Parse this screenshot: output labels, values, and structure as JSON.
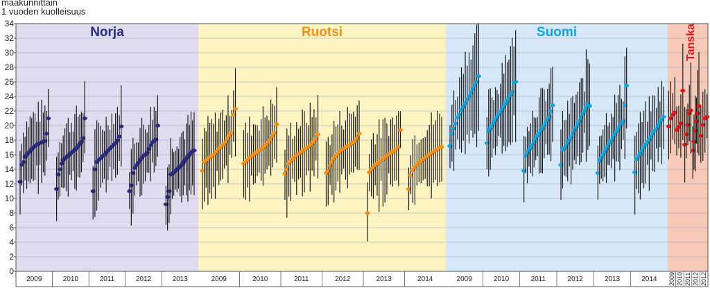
{
  "chart_data": {
    "type": "scatter",
    "title_lines": [
      "maakunnittain",
      "1 vuoden kuolleisuus"
    ],
    "ylim": [
      0,
      34
    ],
    "yticks": [
      0,
      2,
      4,
      6,
      8,
      10,
      12,
      14,
      16,
      18,
      20,
      22,
      24,
      26,
      28,
      30,
      32,
      34
    ],
    "grid": true,
    "panels": [
      {
        "name": "Norja",
        "background": "#e0dcf0",
        "color": "#2b2a7e",
        "label_color": "#2b2a7e",
        "years": [
          {
            "year": "2009",
            "values": [
              12.3,
              14.6,
              15.0,
              15.7,
              16.0,
              16.3,
              16.5,
              16.8,
              17.0,
              17.2,
              17.4,
              17.5,
              17.6,
              17.7,
              17.8,
              17.9,
              18.9,
              21.0
            ]
          },
          {
            "year": "2010",
            "values": [
              11.3,
              13.3,
              14.0,
              14.8,
              15.3,
              15.5,
              15.7,
              15.9,
              16.1,
              16.3,
              16.5,
              16.7,
              16.9,
              17.2,
              17.5,
              17.8,
              18.3,
              21.0
            ]
          },
          {
            "year": "2011",
            "values": [
              11.0,
              14.0,
              15.0,
              15.3,
              15.5,
              15.8,
              16.0,
              16.3,
              16.6,
              16.9,
              17.1,
              17.4,
              17.6,
              18.0,
              18.5,
              19.9
            ]
          },
          {
            "year": "2012",
            "values": [
              11.0,
              11.8,
              13.5,
              14.2,
              14.6,
              14.9,
              15.3,
              15.6,
              15.9,
              16.0,
              16.3,
              16.8,
              17.3,
              17.7,
              17.9,
              18.1,
              20.0
            ]
          },
          {
            "year": "2013",
            "values": [
              9.2,
              10.2,
              11.0,
              13.3,
              13.4,
              13.6,
              13.8,
              14.0,
              14.2,
              14.4,
              14.6,
              14.9,
              15.2,
              15.5,
              15.8,
              16.0,
              16.3,
              16.5,
              16.6
            ]
          }
        ]
      },
      {
        "name": "Ruotsi",
        "background": "#fcf3c2",
        "color": "#f0901c",
        "label_color": "#f0901c",
        "years": [
          {
            "year": "2009",
            "values": [
              13.8,
              15.0,
              15.2,
              15.4,
              15.6,
              15.8,
              16.0,
              16.2,
              16.5,
              16.8,
              17.0,
              17.3,
              17.5,
              17.8,
              18.3,
              18.7,
              19.0,
              21.5,
              22.3
            ]
          },
          {
            "year": "2010",
            "values": [
              14.8,
              15.0,
              15.3,
              15.6,
              15.8,
              16.0,
              16.2,
              16.4,
              16.6,
              16.8,
              17.0,
              17.2,
              17.5,
              17.8,
              18.1,
              18.6,
              19.0,
              20.2
            ]
          },
          {
            "year": "2011",
            "values": [
              13.4,
              14.0,
              14.8,
              15.1,
              15.4,
              15.6,
              15.9,
              16.1,
              16.3,
              16.5,
              16.7,
              16.9,
              17.1,
              17.3,
              17.5,
              17.8,
              18.2,
              18.8
            ]
          },
          {
            "year": "2012",
            "values": [
              13.5,
              13.8,
              14.5,
              15.0,
              15.5,
              15.8,
              16.1,
              16.4,
              16.6,
              16.8,
              17.0,
              17.2,
              17.3,
              17.5,
              17.7,
              17.9,
              18.3,
              18.9
            ]
          },
          {
            "year": "2013",
            "values": [
              8.0,
              13.6,
              14.0,
              14.3,
              14.6,
              14.8,
              15.0,
              15.2,
              15.4,
              15.6,
              15.8,
              16.0,
              16.2,
              16.4,
              16.6,
              16.8,
              17.1,
              19.4
            ]
          },
          {
            "year": "2014",
            "values": [
              11.3,
              13.2,
              13.9,
              14.3,
              14.6,
              14.9,
              15.1,
              15.4,
              15.6,
              15.8,
              16.0,
              16.2,
              16.4,
              16.6,
              16.8,
              17.0,
              17.1
            ]
          }
        ]
      },
      {
        "name": "Suomi",
        "background": "#d6e8f8",
        "color": "#0fa3da",
        "label_color": "#0fa3da",
        "years": [
          {
            "year": "2009",
            "values": [
              17.2,
              18.9,
              19.6,
              20.3,
              21.1,
              21.5,
              22.1,
              22.6,
              23.1,
              23.6,
              24.0,
              24.5,
              25.0,
              25.5,
              26.0,
              26.8
            ]
          },
          {
            "year": "2010",
            "values": [
              17.6,
              19.3,
              19.6,
              20.0,
              20.4,
              20.8,
              21.2,
              21.5,
              21.9,
              22.3,
              22.6,
              23.0,
              23.4,
              23.7,
              24.2,
              24.6,
              25.9,
              26.0
            ]
          },
          {
            "year": "2011",
            "values": [
              13.8,
              15.9,
              16.3,
              16.7,
              17.0,
              17.4,
              17.8,
              18.2,
              18.6,
              18.9,
              19.3,
              19.6,
              20.0,
              20.4,
              20.8,
              21.2,
              22.0,
              22.8
            ]
          },
          {
            "year": "2012",
            "values": [
              14.6,
              16.7,
              16.9,
              17.2,
              17.6,
              18.0,
              18.4,
              18.9,
              19.4,
              19.8,
              20.2,
              20.6,
              21.1,
              21.6,
              22.0,
              22.5,
              23.0,
              22.7
            ]
          },
          {
            "year": "2013",
            "values": [
              13.5,
              15.2,
              15.6,
              16.0,
              16.4,
              16.8,
              17.2,
              17.6,
              18.0,
              18.4,
              18.8,
              19.2,
              19.5,
              19.9,
              20.3,
              20.6,
              22.8,
              25.5
            ]
          },
          {
            "year": "2014",
            "values": [
              13.6,
              15.4,
              15.8,
              16.2,
              16.6,
              17.0,
              17.4,
              17.7,
              18.1,
              18.5,
              18.9,
              19.3,
              19.6,
              20.0,
              20.4,
              20.8,
              21.2
            ]
          }
        ]
      },
      {
        "name": "Tanska",
        "background": "#f6c9b8",
        "color": "#d8161c",
        "label_color": "#d8161c",
        "years": [
          {
            "year": "2009",
            "values": [
              19.9,
              21.0,
              21.5,
              21.8
            ]
          },
          {
            "year": "2010",
            "values": [
              19.4,
              19.8,
              20.3,
              24.8
            ]
          },
          {
            "year": "2011",
            "values": [
              17.4,
              18.8,
              20.1,
              21.7,
              22.1
            ]
          },
          {
            "year": "2012",
            "values": [
              16.6,
              17.8,
              19.3,
              20.6,
              21.7,
              22.7
            ]
          },
          {
            "year": "2012",
            "values": [
              18.6,
              20.1,
              21.0,
              21.2
            ]
          }
        ]
      }
    ]
  }
}
